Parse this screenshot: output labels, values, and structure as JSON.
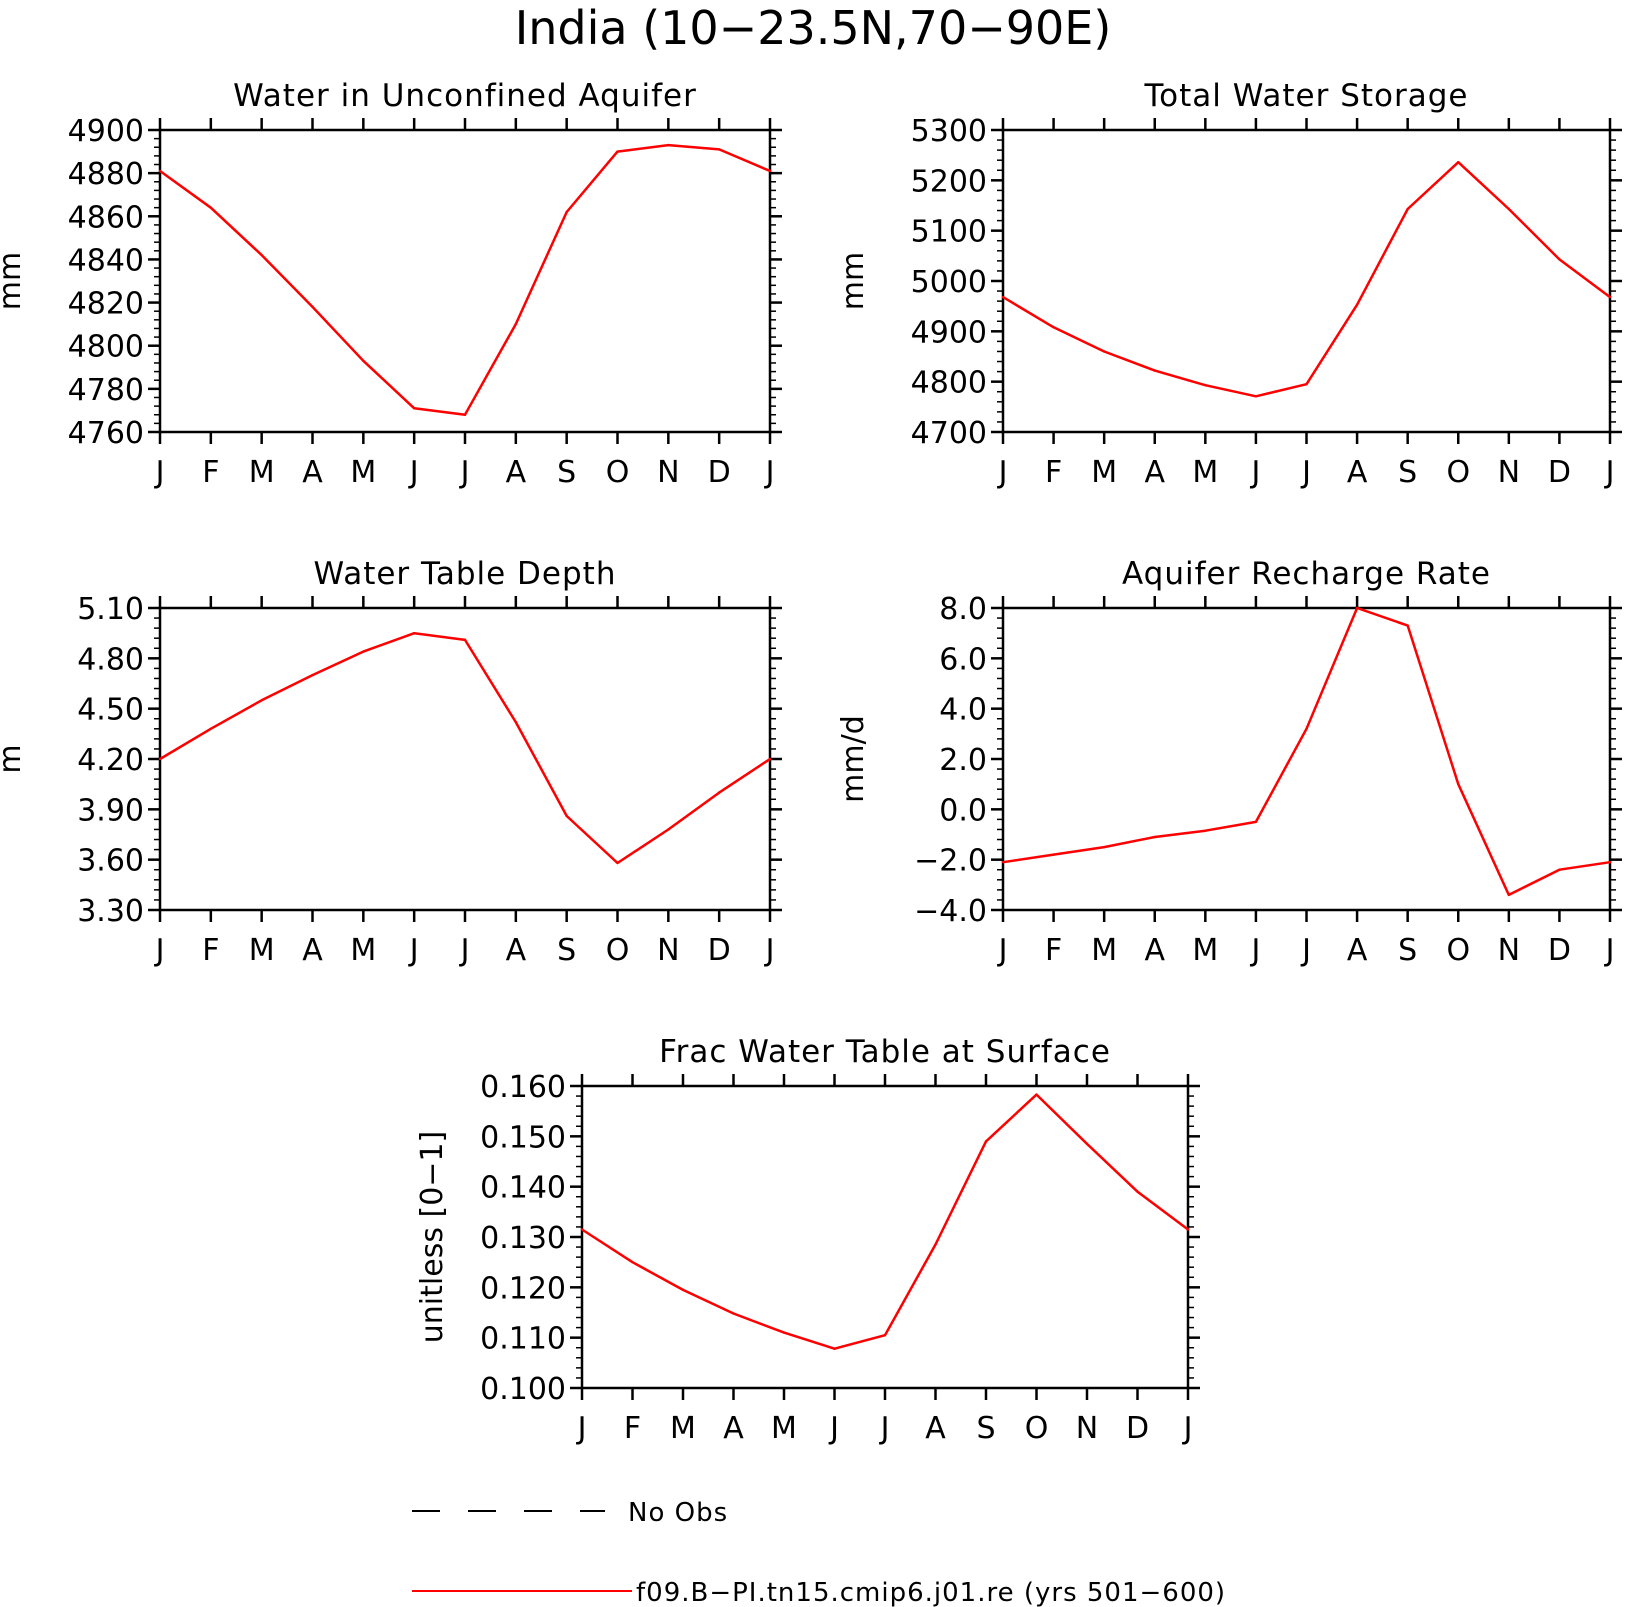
{
  "figure_title": "India (10−23.5N,70−90E)",
  "month_labels": [
    "J",
    "F",
    "M",
    "A",
    "M",
    "J",
    "J",
    "A",
    "S",
    "O",
    "N",
    "D",
    "J"
  ],
  "legend": {
    "items": [
      {
        "label": "No Obs",
        "style": "dashed",
        "color": "#000000"
      },
      {
        "label": "f09.B−PI.tn15.cmip6.j01.re (yrs 501−600)",
        "style": "solid",
        "color": "#ff0000"
      }
    ]
  },
  "colors": {
    "series": "#ff0000",
    "axes": "#000000",
    "background": "#ffffff"
  },
  "chart_data": [
    {
      "type": "line",
      "title": "Water in Unconfined Aquifer",
      "ylabel": "mm",
      "ylim": [
        4760,
        4900
      ],
      "yticks": [
        "4760",
        "4780",
        "4800",
        "4820",
        "4840",
        "4860",
        "4880",
        "4900"
      ],
      "x": [
        "J",
        "F",
        "M",
        "A",
        "M",
        "J",
        "J",
        "A",
        "S",
        "O",
        "N",
        "D",
        "J"
      ],
      "series": [
        {
          "values": [
            4881,
            4864,
            4842,
            4818,
            4793,
            4771,
            4768,
            4810,
            4862,
            4890,
            4893,
            4891,
            4881
          ]
        }
      ]
    },
    {
      "type": "line",
      "title": "Total Water Storage",
      "ylabel": "mm",
      "ylim": [
        4700,
        5300
      ],
      "yticks": [
        "4700",
        "4800",
        "4900",
        "5000",
        "5100",
        "5200",
        "5300"
      ],
      "x": [
        "J",
        "F",
        "M",
        "A",
        "M",
        "J",
        "J",
        "A",
        "S",
        "O",
        "N",
        "D",
        "J"
      ],
      "series": [
        {
          "values": [
            4968,
            4908,
            4860,
            4822,
            4793,
            4771,
            4795,
            4953,
            5143,
            5236,
            5143,
            5043,
            4968
          ]
        }
      ]
    },
    {
      "type": "line",
      "title": "Water Table Depth",
      "ylabel": "m",
      "ylim": [
        3.3,
        5.1
      ],
      "yticks": [
        "3.30",
        "3.60",
        "3.90",
        "4.20",
        "4.50",
        "4.80",
        "5.10"
      ],
      "x": [
        "J",
        "F",
        "M",
        "A",
        "M",
        "J",
        "J",
        "A",
        "S",
        "O",
        "N",
        "D",
        "J"
      ],
      "series": [
        {
          "values": [
            4.2,
            4.38,
            4.55,
            4.7,
            4.84,
            4.95,
            4.91,
            4.42,
            3.86,
            3.58,
            3.78,
            4.0,
            4.2
          ]
        }
      ]
    },
    {
      "type": "line",
      "title": "Aquifer Recharge Rate",
      "ylabel": "mm/d",
      "ylim": [
        -4.0,
        8.0
      ],
      "yticks": [
        "−4.0",
        "−2.0",
        "0.0",
        "2.0",
        "4.0",
        "6.0",
        "8.0"
      ],
      "x": [
        "J",
        "F",
        "M",
        "A",
        "M",
        "J",
        "J",
        "A",
        "S",
        "O",
        "N",
        "D",
        "J"
      ],
      "series": [
        {
          "values": [
            -2.1,
            -1.8,
            -1.5,
            -1.1,
            -0.85,
            -0.5,
            3.2,
            8.0,
            7.3,
            1.0,
            -3.4,
            -2.4,
            -2.1
          ]
        }
      ]
    },
    {
      "type": "line",
      "title": "Frac Water Table at Surface",
      "ylabel": "unitless [0−1]",
      "ylim": [
        0.1,
        0.16
      ],
      "yticks": [
        "0.100",
        "0.110",
        "0.120",
        "0.130",
        "0.140",
        "0.150",
        "0.160"
      ],
      "x": [
        "J",
        "F",
        "M",
        "A",
        "M",
        "J",
        "J",
        "A",
        "S",
        "O",
        "N",
        "D",
        "J"
      ],
      "series": [
        {
          "values": [
            0.1315,
            0.125,
            0.1195,
            0.1148,
            0.111,
            0.1078,
            0.1105,
            0.1285,
            0.149,
            0.1583,
            0.1485,
            0.139,
            0.1315
          ]
        }
      ]
    }
  ]
}
